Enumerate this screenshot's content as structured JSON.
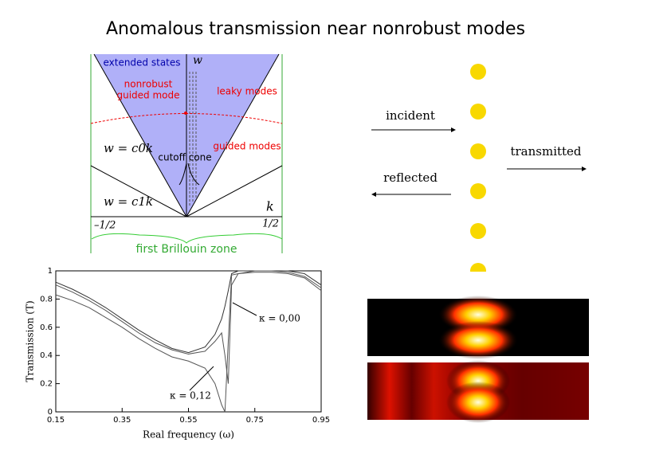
{
  "title": "Anomalous transmission near nonrobust modes",
  "band_diagram": {
    "extended_states": "extended states",
    "w_axis": "w",
    "nonrobust": [
      "nonrobust",
      "guided mode"
    ],
    "leaky": "leaky modes",
    "light_line_0": "w = c0k",
    "guided": "guided modes",
    "cutoff": "cutoff cone",
    "light_line_1": "w = c1k",
    "k_axis": "k",
    "left_edge": "–1/2",
    "right_edge": "1/2",
    "zone": "first Brillouin zone"
  },
  "schematic": {
    "incident": "incident",
    "transmitted": "transmitted",
    "reflected": "reflected"
  },
  "chart_data": {
    "type": "line",
    "xlabel": "Real frequency (ω)",
    "ylabel": "Transmission (T)",
    "x": [
      0.15,
      0.2,
      0.25,
      0.3,
      0.35,
      0.4,
      0.45,
      0.5,
      0.55,
      0.6,
      0.63,
      0.65,
      0.66,
      0.67,
      0.68,
      0.7,
      0.75,
      0.8,
      0.85,
      0.9,
      0.95
    ],
    "series": [
      {
        "color": "#333333",
        "values": [
          0.92,
          0.87,
          0.81,
          0.74,
          0.66,
          0.58,
          0.51,
          0.45,
          0.42,
          0.46,
          0.55,
          0.66,
          0.75,
          0.86,
          0.98,
          1.0,
          1.0,
          1.0,
          1.0,
          0.98,
          0.9
        ]
      },
      {
        "color": "#555555",
        "values": [
          0.9,
          0.85,
          0.79,
          0.72,
          0.64,
          0.56,
          0.49,
          0.44,
          0.41,
          0.43,
          0.5,
          0.56,
          0.4,
          0.2,
          0.9,
          0.98,
          1.0,
          1.0,
          0.99,
          0.96,
          0.88
        ]
      },
      {
        "color": "#555555",
        "values": [
          0.83,
          0.79,
          0.74,
          0.67,
          0.6,
          0.52,
          0.45,
          0.39,
          0.36,
          0.31,
          0.2,
          0.05,
          0.0,
          0.5,
          0.97,
          0.98,
          0.99,
          0.99,
          0.98,
          0.95,
          0.86
        ]
      }
    ],
    "xlim": [
      0.15,
      0.95
    ],
    "ylim": [
      0,
      1
    ],
    "xticks": [
      0.15,
      0.35,
      0.55,
      0.75,
      0.95
    ],
    "yticks": [
      0,
      0.2,
      0.4,
      0.6,
      0.8,
      1
    ],
    "annotations": [
      "κ = 0,00",
      "κ = 0,12"
    ]
  }
}
